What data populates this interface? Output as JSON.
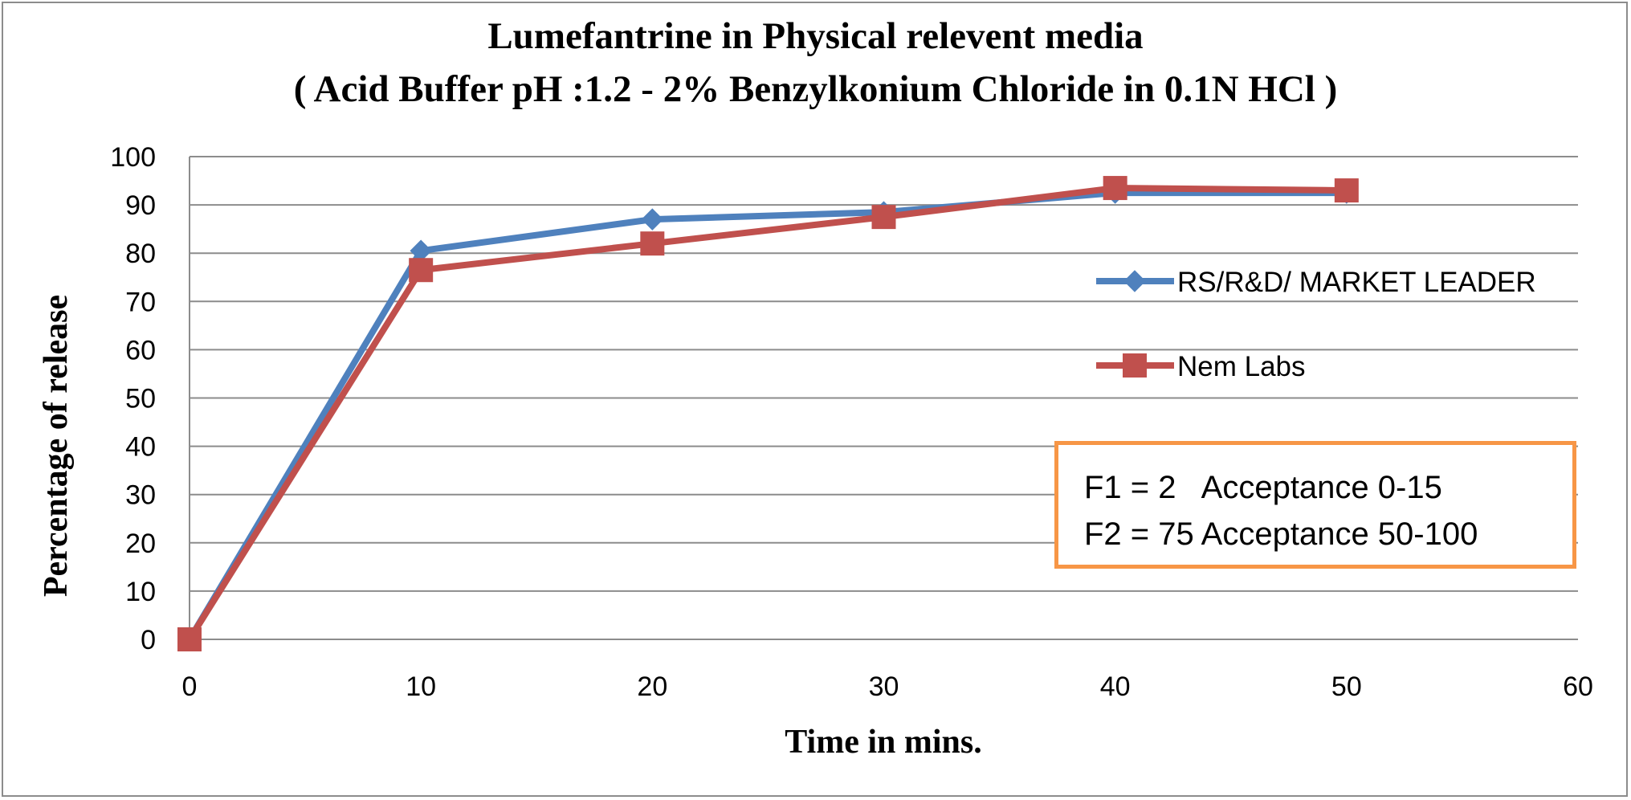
{
  "chart_data": {
    "type": "line",
    "title": "Lumefantrine in Physical relevent media",
    "subtitle": "( Acid Buffer pH :1.2 - 2% Benzylkonium Chloride in 0.1N HCl )",
    "xlabel": "Time in mins.",
    "ylabel": "Percentage of release",
    "x": [
      0,
      10,
      20,
      30,
      40,
      50
    ],
    "xlim": [
      0,
      60
    ],
    "ylim": [
      0,
      100
    ],
    "xticks": [
      "0",
      "10",
      "20",
      "30",
      "40",
      "50",
      "60"
    ],
    "yticks": [
      "0",
      "10",
      "20",
      "30",
      "40",
      "50",
      "60",
      "70",
      "80",
      "90",
      "100"
    ],
    "grid": "horizontal",
    "legend_position": "right",
    "series": [
      {
        "name": "RS/R&D/ MARKET LEADER",
        "values": [
          0,
          80.5,
          87,
          88.5,
          92.5,
          92.5
        ],
        "color": "#4f81bd",
        "marker": "diamond"
      },
      {
        "name": "Nem Labs",
        "values": [
          0,
          76.5,
          82,
          87.5,
          93.5,
          93
        ],
        "color": "#c0504d",
        "marker": "square"
      }
    ],
    "annotation": {
      "lines": [
        "F1 = 2   Acceptance 0-15",
        "F2 = 75 Acceptance 50-100"
      ],
      "border_color": "#f79646"
    }
  }
}
